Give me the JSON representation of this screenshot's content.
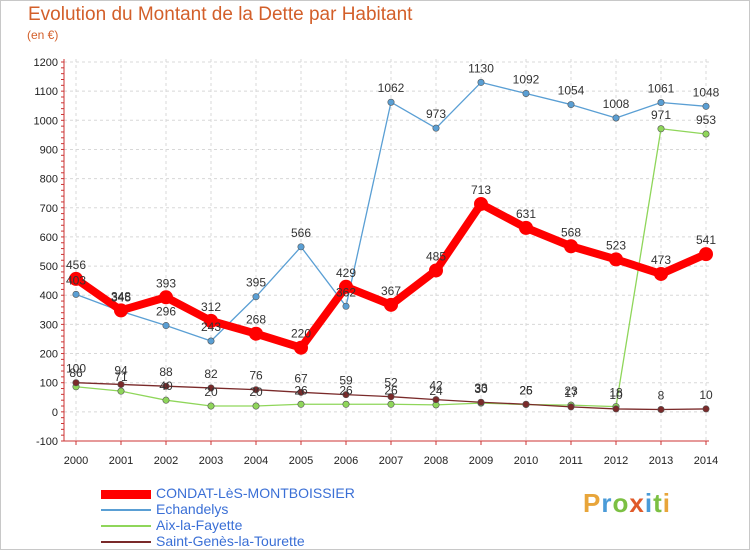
{
  "header": {
    "title": "Evolution du Montant de la Dette par Habitant",
    "unit": "(en €)"
  },
  "logo": {
    "text": "Proxiti",
    "letters": [
      "P",
      "r",
      "o",
      "x",
      "i",
      "t",
      "i"
    ],
    "colors": [
      "#e8a53a",
      "#4a9bd8",
      "#7cc043",
      "#e05a2a",
      "#4a9bd8",
      "#7cc043",
      "#e8a53a"
    ]
  },
  "chart_data": {
    "type": "line",
    "title": "Evolution du Montant de la Dette par Habitant",
    "ylabel": "(en €)",
    "xlabel": "",
    "x": [
      2000,
      2001,
      2002,
      2003,
      2004,
      2005,
      2006,
      2007,
      2008,
      2009,
      2010,
      2011,
      2012,
      2013,
      2014
    ],
    "ylim": [
      -100,
      1200
    ],
    "yticks": [
      -100,
      0,
      100,
      200,
      300,
      400,
      500,
      600,
      700,
      800,
      900,
      1000,
      1100,
      1200
    ],
    "grid": true,
    "legend_position": "bottom-left",
    "series": [
      {
        "name": "CONDAT-LèS-MONTBOISSIER",
        "color": "#ff0000",
        "emphasis": true,
        "values": [
          456,
          348,
          393,
          312,
          268,
          220,
          429,
          367,
          485,
          713,
          631,
          568,
          523,
          473,
          541
        ],
        "labels": [
          "456",
          "348",
          "393",
          "312",
          "268",
          "220",
          "429",
          "367",
          "485",
          "713",
          "631",
          "568",
          "523",
          "473",
          "541"
        ]
      },
      {
        "name": "Echandelys",
        "color": "#5a9fd4",
        "values": [
          403,
          345,
          296,
          243,
          395,
          566,
          362,
          1062,
          973,
          1130,
          1092,
          1054,
          1008,
          1061,
          1048
        ],
        "labels": [
          "403",
          "345",
          "296",
          "243",
          "395",
          "566",
          "362",
          "1062",
          "973",
          "1130",
          "1092",
          "1054",
          "1008",
          "1061",
          "1048"
        ]
      },
      {
        "name": "Aix-la-Fayette",
        "color": "#8fd65a",
        "values": [
          86,
          71,
          40,
          20,
          20,
          26,
          26,
          26,
          24,
          30,
          25,
          23,
          18,
          971,
          953
        ],
        "labels": [
          "86",
          "71",
          "40",
          "20",
          "20",
          "26",
          "26",
          "26",
          "24",
          "30",
          "25",
          "23",
          "18",
          "971",
          "953"
        ]
      },
      {
        "name": "Saint-Genès-la-Tourette",
        "color": "#7a2a2a",
        "values": [
          100,
          94,
          88,
          82,
          76,
          67,
          59,
          52,
          42,
          33,
          26,
          17,
          10,
          8,
          10
        ],
        "labels": [
          "100",
          "94",
          "88",
          "82",
          "76",
          "67",
          "59",
          "52",
          "42",
          "33",
          "26",
          "17",
          "10",
          "8",
          "10"
        ]
      }
    ]
  }
}
